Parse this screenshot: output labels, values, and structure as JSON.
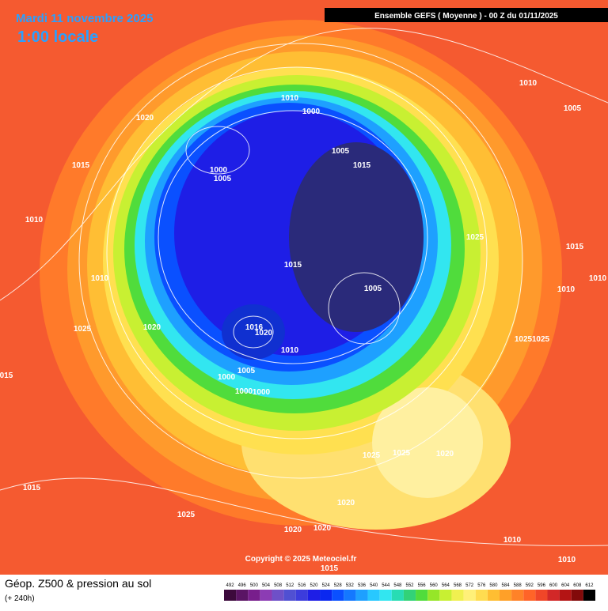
{
  "header": {
    "date": "Mardi 11 novembre 2025",
    "time": "1:00 locale",
    "run": "Ensemble GEFS  ( Moyenne )  -  00 Z du 01/11/2025"
  },
  "footer": {
    "title": "Géop. Z500 & pression au sol",
    "lead": "(+ 240h)",
    "copyright": "Copyright © 2025 Meteociel.fr"
  },
  "scale": {
    "labels": [
      "492",
      "496",
      "500",
      "504",
      "508",
      "512",
      "516",
      "520",
      "524",
      "528",
      "532",
      "536",
      "540",
      "544",
      "548",
      "552",
      "556",
      "560",
      "564",
      "568",
      "572",
      "576",
      "580",
      "584",
      "588",
      "592",
      "596",
      "600",
      "604",
      "608",
      "612"
    ],
    "colors": [
      "#3c0a3c",
      "#5a1464",
      "#781e8c",
      "#8c3cb4",
      "#6e50c8",
      "#5050d2",
      "#3c3cdc",
      "#1e1ee6",
      "#0a28f0",
      "#0a50ff",
      "#1478ff",
      "#1ea0ff",
      "#28c8ff",
      "#32e6f0",
      "#28dcb4",
      "#32d278",
      "#50dc3c",
      "#96e628",
      "#c8f032",
      "#f0f050",
      "#fff078",
      "#ffdc50",
      "#ffbe32",
      "#ffa028",
      "#ff8228",
      "#ff6428",
      "#f04628",
      "#d22828",
      "#b41414",
      "#820a0a",
      "#000000"
    ]
  },
  "isobar_labels": [
    "1010",
    "1000",
    "1020",
    "1005",
    "1015",
    "1000",
    "1005",
    "1015",
    "1010",
    "1025",
    "1015",
    "1010",
    "1005",
    "1015",
    "1010",
    "1020",
    "1025",
    "1025",
    "1025",
    "1016",
    "1020",
    "1010",
    "1005",
    "1000",
    "1000",
    "1000",
    "015",
    "1015",
    "1025",
    "1025",
    "1025",
    "1020",
    "1020",
    "1020",
    "1020",
    "1010",
    "1010",
    "1015",
    "1010",
    "1005",
    "1010"
  ]
}
